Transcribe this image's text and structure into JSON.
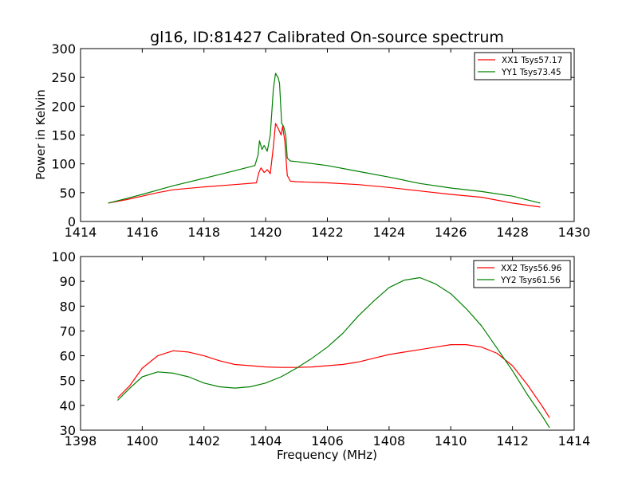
{
  "chart_data": [
    {
      "type": "line",
      "title": "gl16, ID:81427 Calibrated On-source spectrum",
      "xlabel": "",
      "ylabel": "Power in Kelvin",
      "xlim": [
        1414,
        1430
      ],
      "ylim": [
        0,
        300
      ],
      "xticks": [
        1414,
        1416,
        1418,
        1420,
        1422,
        1424,
        1426,
        1428,
        1430
      ],
      "yticks": [
        0,
        50,
        100,
        150,
        200,
        250,
        300
      ],
      "grid": false,
      "legend_position": "top-right",
      "series": [
        {
          "name": "XX1 Tsys57.17",
          "color": "#ff0000",
          "points": [
            [
              1414.9,
              32
            ],
            [
              1415.5,
              38
            ],
            [
              1416,
              44
            ],
            [
              1416.5,
              50
            ],
            [
              1417,
              55
            ],
            [
              1418,
              60
            ],
            [
              1419,
              64
            ],
            [
              1419.7,
              67
            ],
            [
              1419.78,
              85
            ],
            [
              1419.85,
              93
            ],
            [
              1419.95,
              85
            ],
            [
              1420.05,
              90
            ],
            [
              1420.15,
              83
            ],
            [
              1420.25,
              130
            ],
            [
              1420.32,
              170
            ],
            [
              1420.42,
              160
            ],
            [
              1420.5,
              150
            ],
            [
              1420.55,
              165
            ],
            [
              1420.62,
              140
            ],
            [
              1420.7,
              80
            ],
            [
              1420.8,
              70
            ],
            [
              1421,
              69
            ],
            [
              1422,
              67
            ],
            [
              1423,
              64
            ],
            [
              1424,
              59
            ],
            [
              1425,
              53
            ],
            [
              1426,
              47
            ],
            [
              1427,
              42
            ],
            [
              1428,
              32
            ],
            [
              1428.9,
              25
            ]
          ]
        },
        {
          "name": "YY1 Tsys73.45",
          "color": "#008000",
          "points": [
            [
              1414.9,
              32
            ],
            [
              1415.5,
              40
            ],
            [
              1416,
              47
            ],
            [
              1417,
              62
            ],
            [
              1418,
              75
            ],
            [
              1419,
              88
            ],
            [
              1419.65,
              97
            ],
            [
              1419.75,
              115
            ],
            [
              1419.8,
              140
            ],
            [
              1419.88,
              125
            ],
            [
              1419.95,
              132
            ],
            [
              1420.05,
              122
            ],
            [
              1420.15,
              150
            ],
            [
              1420.25,
              230
            ],
            [
              1420.32,
              257
            ],
            [
              1420.4,
              250
            ],
            [
              1420.45,
              240
            ],
            [
              1420.52,
              170
            ],
            [
              1420.58,
              165
            ],
            [
              1420.65,
              150
            ],
            [
              1420.7,
              110
            ],
            [
              1420.8,
              105
            ],
            [
              1421,
              104
            ],
            [
              1422,
              97
            ],
            [
              1423,
              87
            ],
            [
              1424,
              77
            ],
            [
              1425,
              66
            ],
            [
              1426,
              58
            ],
            [
              1427,
              52
            ],
            [
              1428,
              44
            ],
            [
              1428.9,
              32
            ]
          ]
        }
      ]
    },
    {
      "type": "line",
      "title": "",
      "xlabel": "Frequency (MHz)",
      "ylabel": "",
      "xlim": [
        1398,
        1414
      ],
      "ylim": [
        30,
        100
      ],
      "xticks": [
        1398,
        1400,
        1402,
        1404,
        1406,
        1408,
        1410,
        1412,
        1414
      ],
      "yticks": [
        30,
        40,
        50,
        60,
        70,
        80,
        90,
        100
      ],
      "grid": false,
      "legend_position": "top-right",
      "series": [
        {
          "name": "XX2 Tsys56.96",
          "color": "#ff0000",
          "points": [
            [
              1399.2,
              43
            ],
            [
              1399.6,
              48
            ],
            [
              1400,
              55
            ],
            [
              1400.5,
              60
            ],
            [
              1401,
              62
            ],
            [
              1401.5,
              61.5
            ],
            [
              1402,
              60
            ],
            [
              1402.5,
              58
            ],
            [
              1403,
              56.5
            ],
            [
              1403.5,
              56
            ],
            [
              1404,
              55.5
            ],
            [
              1404.5,
              55.3
            ],
            [
              1405,
              55.3
            ],
            [
              1405.5,
              55.5
            ],
            [
              1406,
              56
            ],
            [
              1406.5,
              56.5
            ],
            [
              1407,
              57.5
            ],
            [
              1407.5,
              59
            ],
            [
              1408,
              60.5
            ],
            [
              1408.5,
              61.5
            ],
            [
              1409,
              62.5
            ],
            [
              1409.5,
              63.5
            ],
            [
              1410,
              64.5
            ],
            [
              1410.5,
              64.5
            ],
            [
              1411,
              63.5
            ],
            [
              1411.5,
              61
            ],
            [
              1412,
              56
            ],
            [
              1412.5,
              48
            ],
            [
              1413,
              39
            ],
            [
              1413.2,
              35
            ]
          ]
        },
        {
          "name": "YY2 Tsys61.56",
          "color": "#008000",
          "points": [
            [
              1399.2,
              42
            ],
            [
              1399.6,
              47
            ],
            [
              1400,
              51.5
            ],
            [
              1400.5,
              53.5
            ],
            [
              1401,
              53
            ],
            [
              1401.5,
              51.5
            ],
            [
              1402,
              49
            ],
            [
              1402.5,
              47.5
            ],
            [
              1403,
              47
            ],
            [
              1403.5,
              47.5
            ],
            [
              1404,
              49
            ],
            [
              1404.5,
              51.5
            ],
            [
              1405,
              55
            ],
            [
              1405.5,
              59
            ],
            [
              1406,
              63.5
            ],
            [
              1406.5,
              69
            ],
            [
              1407,
              76
            ],
            [
              1407.5,
              82
            ],
            [
              1408,
              87.5
            ],
            [
              1408.5,
              90.5
            ],
            [
              1409,
              91.5
            ],
            [
              1409.5,
              89
            ],
            [
              1410,
              85
            ],
            [
              1410.5,
              79
            ],
            [
              1411,
              72
            ],
            [
              1411.5,
              63
            ],
            [
              1412,
              54
            ],
            [
              1412.5,
              44
            ],
            [
              1413,
              35
            ],
            [
              1413.2,
              31
            ]
          ]
        }
      ]
    }
  ]
}
